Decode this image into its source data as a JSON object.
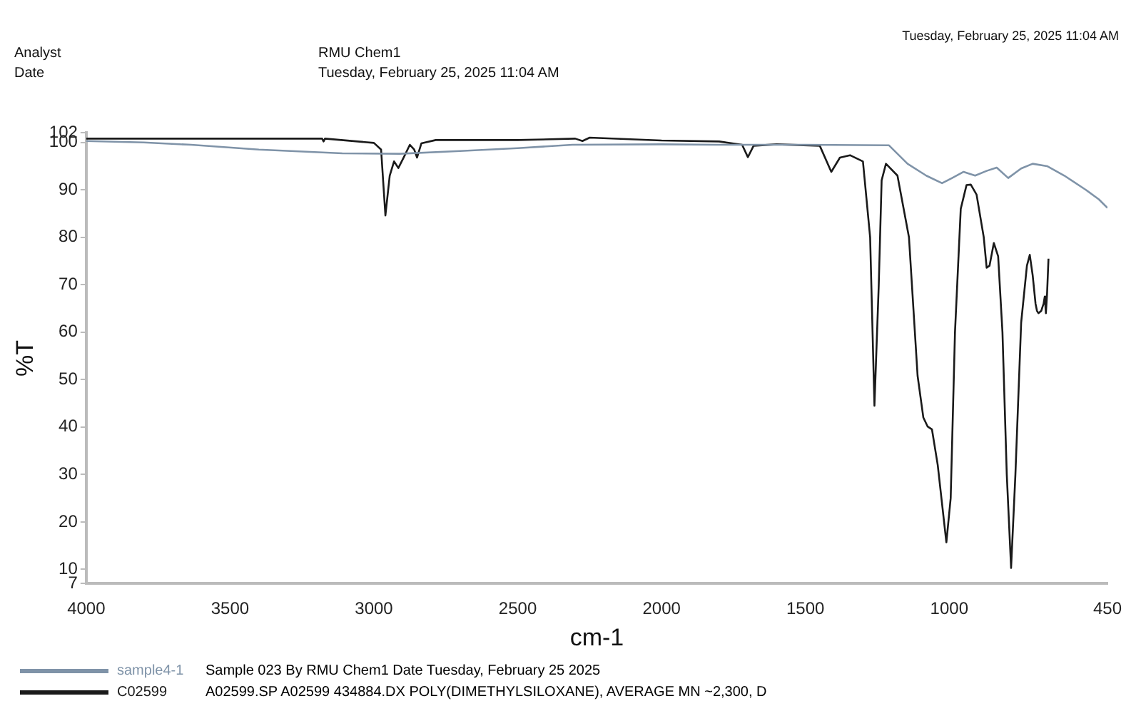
{
  "chart_data": {
    "type": "line",
    "xlabel": "cm-1",
    "ylabel": "%T",
    "annotations": [
      "Analyst",
      "RMU Chem1",
      "Date",
      "Tuesday, February 25, 2025 11:04 AM",
      "Tuesday, February 25, 2025 11:04 AM",
      "Sample 023 By RMU Chem1 Date Tuesday, February 25 2025",
      "A02599.SP A02599 434884.DX POLY(DIMETHYLSILOXANE), AVERAGE MN ~2,300, D"
    ],
    "xlim": [
      4000,
      450
    ],
    "xticks": [
      4000,
      3500,
      3000,
      2500,
      2000,
      1500,
      1000,
      450
    ],
    "ylim": [
      7,
      102
    ],
    "yticks": [
      7,
      10,
      20,
      30,
      40,
      50,
      60,
      70,
      80,
      90,
      100,
      102
    ],
    "grid": false,
    "legend": "bottom",
    "marker": "none",
    "line_style": "solid",
    "series": [
      {
        "name": "sample4-1",
        "color": "#7f93a8",
        "x": [
          4000,
          3800,
          3635,
          3400,
          3110,
          2910,
          2700,
          2500,
          2310,
          2000,
          1810,
          1500,
          1210,
          1145,
          1080,
          1025,
          990,
          950,
          910,
          870,
          835,
          795,
          750,
          710,
          660,
          600,
          525,
          480,
          450
        ],
        "values": [
          100.3,
          100,
          99.5,
          98.5,
          97.7,
          97.6,
          98.2,
          98.8,
          99.5,
          99.6,
          99.5,
          99.5,
          99.4,
          95.5,
          93,
          91.4,
          92.5,
          93.8,
          93,
          94,
          94.7,
          92.5,
          94.5,
          95.5,
          95,
          93,
          90,
          88,
          86.2
        ]
      },
      {
        "name": "C02599",
        "color": "#1a1a1a",
        "x": [
          4000,
          3500,
          3180,
          3175,
          3170,
          3000,
          2975,
          2960,
          2945,
          2930,
          2915,
          2895,
          2875,
          2860,
          2850,
          2835,
          2785,
          2500,
          2300,
          2275,
          2250,
          2000,
          1800,
          1720,
          1700,
          1680,
          1600,
          1450,
          1410,
          1380,
          1345,
          1300,
          1275,
          1260,
          1245,
          1235,
          1220,
          1180,
          1140,
          1110,
          1090,
          1075,
          1060,
          1040,
          1010,
          995,
          980,
          960,
          940,
          925,
          905,
          880,
          870,
          860,
          845,
          830,
          815,
          800,
          785,
          770,
          750,
          730,
          720,
          710,
          700,
          695,
          690,
          680,
          676,
          672,
          668,
          664,
          660,
          655
        ],
        "values": [
          100.8,
          100.8,
          100.8,
          100.2,
          100.8,
          99.9,
          98.5,
          84.6,
          93,
          96,
          94.6,
          97,
          99.5,
          98.5,
          96.8,
          99.8,
          100.5,
          100.5,
          100.8,
          100.3,
          101,
          100.4,
          100.2,
          99.5,
          96.9,
          99.3,
          99.6,
          99.3,
          93.8,
          96.8,
          97.3,
          96,
          80,
          44.5,
          70,
          92,
          95.5,
          93,
          80,
          50.8,
          42,
          40.1,
          39.5,
          32,
          15.7,
          25,
          60,
          86,
          91,
          91.1,
          89,
          80,
          73.6,
          74,
          78.8,
          76,
          60,
          30,
          10.3,
          30,
          62,
          74,
          76.3,
          72,
          66,
          64.5,
          64,
          64.5,
          65.3,
          66,
          67.5,
          64,
          68,
          75.5
        ]
      }
    ]
  }
}
